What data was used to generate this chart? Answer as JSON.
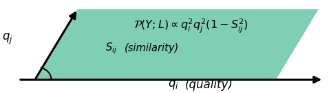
{
  "bg_color": "#ffffff",
  "parallelogram_color": "#7ecfb3",
  "arrow_lw": 2.2,
  "arrow_mutation_scale": 15,
  "font_size_formula": 11.5,
  "font_size_labels": 12,
  "font_size_similarity": 10.5
}
